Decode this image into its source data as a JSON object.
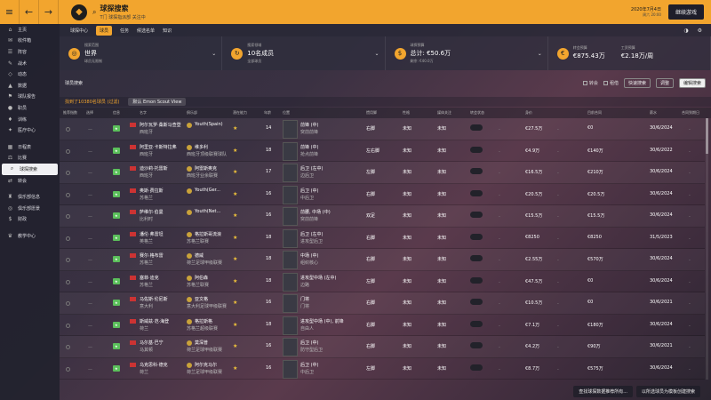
{
  "topbar": {
    "back": "←",
    "forward": "→",
    "search": "⌕",
    "title": "球探搜索",
    "subtitle": "T门 球探指派部 关注中",
    "date": "2020年7月4日",
    "time": "周六 20:00",
    "continue": "继续游戏"
  },
  "sidebar": [
    {
      "icon": "⌂",
      "label": "主页"
    },
    {
      "icon": "✉",
      "label": "收件箱"
    },
    {
      "icon": "☰",
      "label": "阵容"
    },
    {
      "icon": "✎",
      "label": "战术"
    },
    {
      "icon": "◇",
      "label": "动态"
    },
    {
      "icon": "▲",
      "label": "数据"
    },
    {
      "icon": "⚑",
      "label": "球队报告"
    },
    {
      "icon": "●",
      "label": "职员"
    },
    {
      "icon": "♦",
      "label": "训练"
    },
    {
      "icon": "✦",
      "label": "医疗中心"
    },
    {
      "icon": "",
      "label": ""
    },
    {
      "icon": "▦",
      "label": "日程表"
    },
    {
      "icon": "⚖",
      "label": "比赛"
    },
    {
      "icon": "⌕",
      "label": "球探搜索"
    },
    {
      "icon": "⇄",
      "label": "转会"
    },
    {
      "icon": "",
      "label": ""
    },
    {
      "icon": "♜",
      "label": "俱乐部信息"
    },
    {
      "icon": "◎",
      "label": "俱乐部愿景"
    },
    {
      "icon": "$",
      "label": "财政"
    },
    {
      "icon": "",
      "label": ""
    },
    {
      "icon": "♛",
      "label": "教学中心"
    }
  ],
  "subnav": {
    "tabs": [
      "球探中心",
      "球员",
      "任务",
      "候选名单",
      "知识"
    ],
    "active_index": 1,
    "icons": [
      "◑",
      "⚙"
    ]
  },
  "summary": [
    {
      "badge": "◎",
      "label": "搜索范围",
      "value": "世界",
      "sub": "球员无限制"
    },
    {
      "badge": "↻",
      "label": "搜索领域",
      "value": "10名成员",
      "sub": "全部球员"
    },
    {
      "badge": "$",
      "label": "球探预算",
      "value": "总计: €50.6万",
      "sub": "剩余: €40.0万"
    },
    {
      "badge": "€",
      "label": "转会预算",
      "value": "€875.43万",
      "sub": "",
      "label2": "工资预算",
      "value2": "€2.18万/周"
    }
  ],
  "filterbar": {
    "title": "球员搜索",
    "check1": "转会",
    "check2": "租借",
    "quick": "快速搜索",
    "edit": "调整",
    "apply": "编辑搜索"
  },
  "tableinfo": {
    "count": "找到了10380名球员 (过滤)",
    "view": "默认 Emon Scout View"
  },
  "columns": [
    "推荐指数",
    "选择",
    "信息",
    "名字",
    "俱乐部",
    "潜在能力",
    "年龄",
    "位置",
    "惯用脚",
    "性格",
    "媒体关注",
    "转会状态",
    "身价",
    "目前合同",
    "薪水",
    "合同到期日"
  ],
  "rows": [
    {
      "name": "阿尔瓦罗·桑斯马查登",
      "nat": "西班牙",
      "club": "Youth(Spain)",
      "league": "",
      "age": "14",
      "pos": "前锋 (中)",
      "role": "突前前锋",
      "foot": "右脚",
      "pers": "未知",
      "med": "未知",
      "val": "€27.5万",
      "wage": "€0",
      "cont": "30/6/2024",
      "stars": "★"
    },
    {
      "name": "阿里亚·卡斯特拉弗",
      "nat": "西班牙",
      "club": "维多利",
      "league": "西班牙顶级联赛球队",
      "age": "18",
      "pos": "前锋 (中)",
      "role": "抢点前锋",
      "foot": "左右脚",
      "pers": "未知",
      "med": "未知",
      "val": "€4.9万",
      "wage": "€140万",
      "cont": "30/6/2022",
      "stars": "★"
    },
    {
      "name": "迪沙莉·托雷斯",
      "nat": "西班牙",
      "club": "阿雷斯奥克",
      "league": "西班牙业余联赛",
      "age": "17",
      "pos": "后卫 (左中)",
      "role": "边后卫",
      "foot": "左脚",
      "pers": "未知",
      "med": "未知",
      "val": "€16.5万",
      "wage": "€210万",
      "cont": "30/6/2024",
      "stars": "★"
    },
    {
      "name": "奥斯·费拉斯",
      "nat": "苏格兰",
      "club": "Youth(Ger...",
      "league": "",
      "age": "16",
      "pos": "后卫 (中)",
      "role": "中后卫",
      "foot": "右脚",
      "pers": "未知",
      "med": "未知",
      "val": "€20.5万",
      "wage": "€20.5万",
      "cont": "30/6/2024",
      "stars": "★"
    },
    {
      "name": "萨维尔·伯曼",
      "nat": "比利时",
      "club": "Youth(Net...",
      "league": "",
      "age": "16",
      "pos": "前腰, 中场 (中)",
      "role": "突前前锋",
      "foot": "双足",
      "pers": "未知",
      "med": "未知",
      "val": "€15.5万",
      "wage": "€15.5万",
      "cont": "30/6/2024",
      "stars": "★"
    },
    {
      "name": "潘伦·弗雷坦",
      "nat": "英格兰",
      "club": "格拉斯哥流浪",
      "league": "苏格兰联赛",
      "age": "18",
      "pos": "后卫 (左中)",
      "role": "进攻型后卫",
      "foot": "右脚",
      "pers": "未知",
      "med": "未知",
      "val": "€8250",
      "wage": "€8250",
      "cont": "31/5/2023",
      "stars": "★"
    },
    {
      "name": "赛尔·格布雷",
      "nat": "苏格兰",
      "club": "德威",
      "league": "荷兰足球甲级联赛",
      "age": "18",
      "pos": "中场 (中)",
      "role": "组织核心",
      "foot": "右脚",
      "pers": "未知",
      "med": "未知",
      "val": "€2.55万",
      "wage": "€570万",
      "cont": "30/6/2024",
      "stars": "★"
    },
    {
      "name": "塞菲·迪克",
      "nat": "苏格兰",
      "club": "阿伯森",
      "league": "苏格兰联赛",
      "age": "18",
      "pos": "进攻型中场 (左中)",
      "role": "边路",
      "foot": "左脚",
      "pers": "未知",
      "med": "未知",
      "val": "€47.5万",
      "wage": "€0",
      "cont": "30/6/2024",
      "stars": "★"
    },
    {
      "name": "马佐斯·伦尼斯",
      "nat": "意大利",
      "club": "亚文格",
      "league": "意大利足球甲级联赛",
      "age": "16",
      "pos": "门将",
      "role": "门将",
      "foot": "右脚",
      "pers": "未知",
      "med": "未知",
      "val": "€10.5万",
      "wage": "€0",
      "cont": "30/6/2021",
      "stars": "★"
    },
    {
      "name": "斯威兹·范·海登",
      "nat": "荷兰",
      "club": "格拉斯格",
      "league": "苏格兰超级联赛",
      "age": "18",
      "pos": "进攻型中场 (中), 前锋",
      "role": "自由人",
      "foot": "右脚",
      "pers": "未知",
      "med": "未知",
      "val": "€7.1万",
      "wage": "€180万",
      "cont": "30/6/2024",
      "stars": "★"
    },
    {
      "name": "马尔基·巴宁",
      "nat": "马其顿",
      "club": "莫深普",
      "league": "荷兰足球甲级联赛",
      "age": "16",
      "pos": "后卫 (中)",
      "role": "防守型后卫",
      "foot": "右脚",
      "pers": "未知",
      "med": "未知",
      "val": "€4.2万",
      "wage": "€90万",
      "cont": "30/6/2021",
      "stars": "★"
    },
    {
      "name": "乌克思科·德克",
      "nat": "荷兰",
      "club": "阿尔克马尔",
      "league": "荷兰足球甲级联赛",
      "age": "16",
      "pos": "后卫 (中)",
      "role": "中后卫",
      "foot": "左脚",
      "pers": "未知",
      "med": "未知",
      "val": "€8.7万",
      "wage": "€575万",
      "cont": "30/6/2024",
      "stars": "★"
    }
  ],
  "footer": {
    "btn1": "查找球探数据推荐所有...",
    "btn2": "以所选球员为模板创建搜索"
  }
}
